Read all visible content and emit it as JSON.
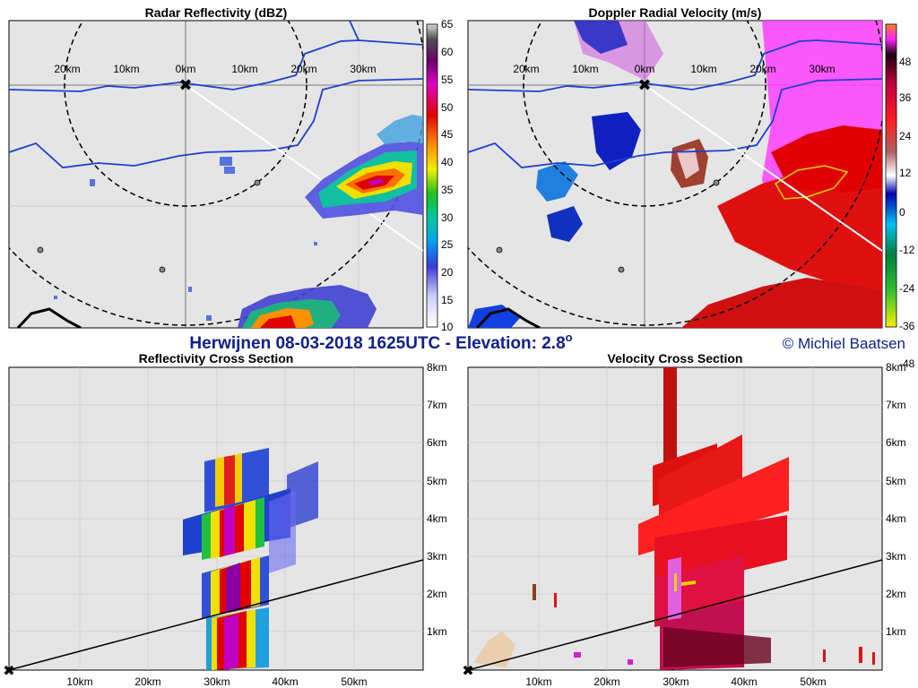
{
  "main_title": "Herwijnen 08-03-2018 1625UTC - Elevation: 2.8",
  "main_title_sup": "o",
  "copyright": "© Michiel Baatsen",
  "colors": {
    "map_bg": "#e5e5e5",
    "border_line": "#1f3fcf",
    "accent_text": "#10208a"
  },
  "panels": {
    "reflectivity": {
      "title": "Radar Reflectivity (dBZ)",
      "range_labels": [
        "20km",
        "10km",
        "0km",
        "10km",
        "20km",
        "30km"
      ],
      "colorbar_ticks": [
        "65",
        "60",
        "55",
        "50",
        "45",
        "40",
        "35",
        "30",
        "25",
        "20",
        "15",
        "10"
      ]
    },
    "velocity": {
      "title": "Doppler Radial Velocity (m/s)",
      "range_labels": [
        "20km",
        "10km",
        "0km",
        "10km",
        "20km",
        "30km"
      ],
      "colorbar_ticks": [
        "48",
        "36",
        "24",
        "12",
        "0",
        "-12",
        "-24",
        "-36",
        "-48"
      ]
    },
    "refl_cross": {
      "title": "Reflectivity Cross Section",
      "x_ticks": [
        "10km",
        "20km",
        "30km",
        "40km",
        "50km"
      ],
      "y_ticks": [
        "8km",
        "7km",
        "6km",
        "5km",
        "4km",
        "3km",
        "2km",
        "1km"
      ]
    },
    "vel_cross": {
      "title": "Velocity Cross Section",
      "x_ticks": [
        "10km",
        "20km",
        "30km",
        "40km",
        "50km"
      ],
      "y_ticks": [
        "8km",
        "7km",
        "6km",
        "5km",
        "4km",
        "3km",
        "2km",
        "1km"
      ]
    }
  }
}
